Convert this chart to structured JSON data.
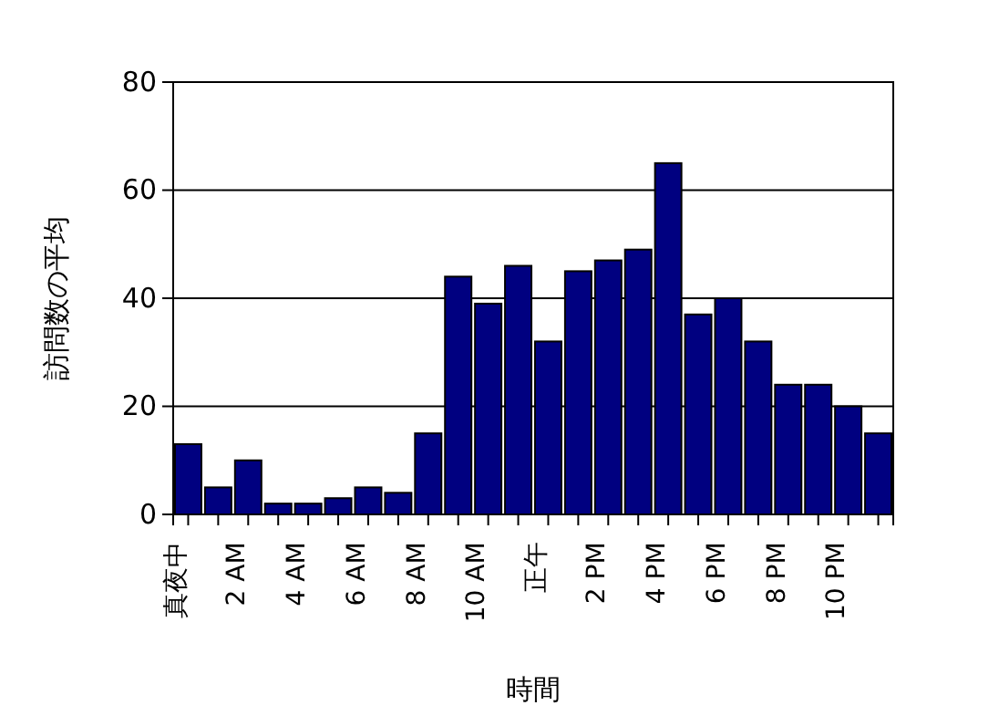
{
  "chart_data": {
    "type": "bar",
    "xlabel": "時間",
    "ylabel": "訪問数の平均",
    "categories": [
      "真夜中",
      null,
      "2 AM",
      null,
      "4 AM",
      null,
      "6 AM",
      null,
      "8 AM",
      null,
      "10 AM",
      null,
      "正午",
      null,
      "2 PM",
      null,
      "4 PM",
      null,
      "6 PM",
      null,
      "8 PM",
      null,
      "10 PM",
      null
    ],
    "values": [
      13,
      5,
      10,
      2,
      2,
      3,
      5,
      4,
      15,
      44,
      39,
      46,
      32,
      45,
      47,
      49,
      65,
      37,
      40,
      32,
      24,
      24,
      20,
      15
    ],
    "color": "#000080",
    "ylim": [
      0,
      80
    ],
    "yticks": [
      0,
      20,
      40,
      60,
      80
    ],
    "grid": "y"
  }
}
